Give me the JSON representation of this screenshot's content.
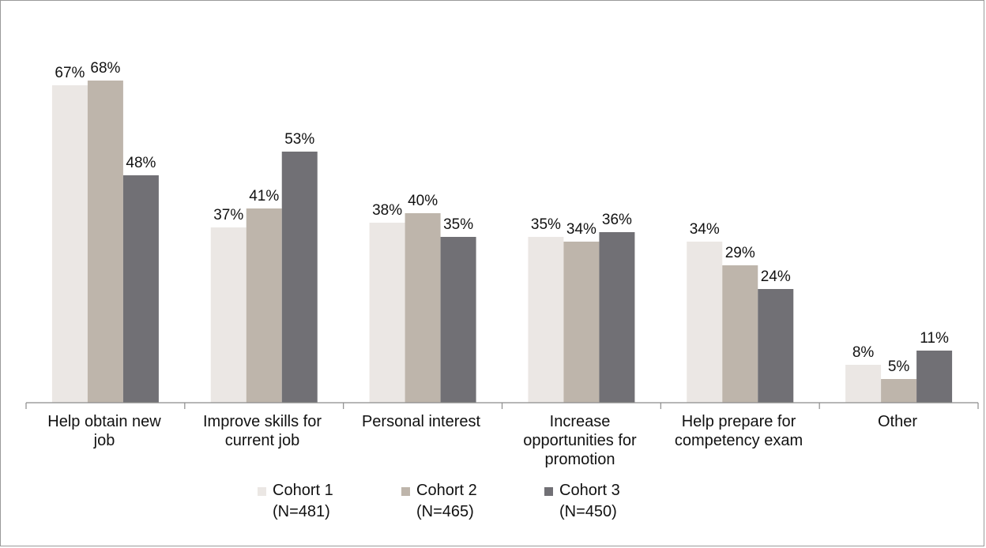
{
  "chart_data": {
    "type": "bar",
    "categories": [
      "Help obtain new\njob",
      "Improve skills for\ncurrent job",
      "Personal interest",
      "Increase\nopportunities for\npromotion",
      "Help prepare for\ncompetency exam",
      "Other"
    ],
    "series": [
      {
        "name": "Cohort 1",
        "n_label": "(N=481)",
        "color": "#ebe7e4",
        "values": [
          67,
          37,
          38,
          35,
          34,
          8
        ],
        "labels": [
          "67%",
          "37%",
          "38%",
          "35%",
          "34%",
          "8%"
        ]
      },
      {
        "name": "Cohort 2",
        "n_label": "(N=465)",
        "color": "#beb5ab",
        "values": [
          68,
          41,
          40,
          34,
          29,
          5
        ],
        "labels": [
          "68%",
          "41%",
          "40%",
          "34%",
          "29%",
          "5%"
        ]
      },
      {
        "name": "Cohort 3",
        "n_label": "(N=450)",
        "color": "#717075",
        "values": [
          48,
          53,
          35,
          36,
          24,
          11
        ],
        "labels": [
          "48%",
          "53%",
          "35%",
          "36%",
          "24%",
          "11%"
        ]
      }
    ],
    "title": "",
    "xlabel": "",
    "ylabel": "",
    "ylim": [
      0,
      70
    ],
    "grid": false,
    "legend_position": "bottom"
  }
}
